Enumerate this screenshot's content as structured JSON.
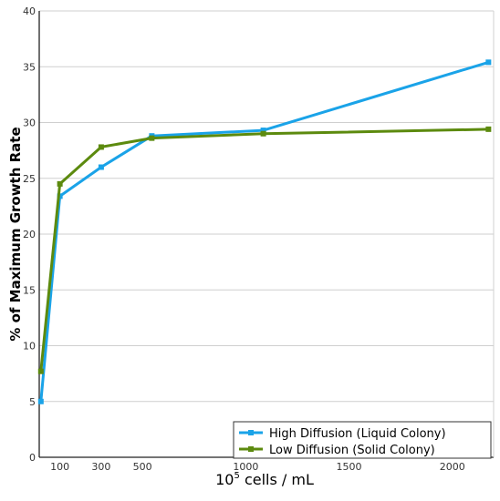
{
  "chart_data": {
    "type": "line",
    "xlabel_base": "10",
    "xlabel_exp": "5",
    "xlabel_rest": " cells / mL",
    "ylabel": "% of Maximum Growth Rate",
    "xlim": [
      0,
      2200
    ],
    "ylim": [
      0,
      40
    ],
    "xticks": [
      100,
      300,
      500,
      1000,
      1500,
      2000
    ],
    "yticks": [
      0,
      5,
      10,
      15,
      20,
      25,
      30,
      35,
      40
    ],
    "grid": "horizontal",
    "legend_position": "bottom-right",
    "series": [
      {
        "name": "High Diffusion (Liquid Colony)",
        "color": "#1aa3e8",
        "marker": "square",
        "points": [
          [
            8,
            5.0
          ],
          [
            100,
            23.4
          ],
          [
            300,
            26.0
          ],
          [
            545,
            28.8
          ],
          [
            1085,
            29.3
          ],
          [
            2175,
            35.4
          ]
        ]
      },
      {
        "name": "Low Diffusion (Solid Colony)",
        "color": "#5c8a0e",
        "marker": "square",
        "points": [
          [
            8,
            7.7
          ],
          [
            100,
            24.5
          ],
          [
            300,
            27.8
          ],
          [
            545,
            28.6
          ],
          [
            1085,
            29.0
          ],
          [
            2175,
            29.4
          ]
        ]
      }
    ]
  }
}
